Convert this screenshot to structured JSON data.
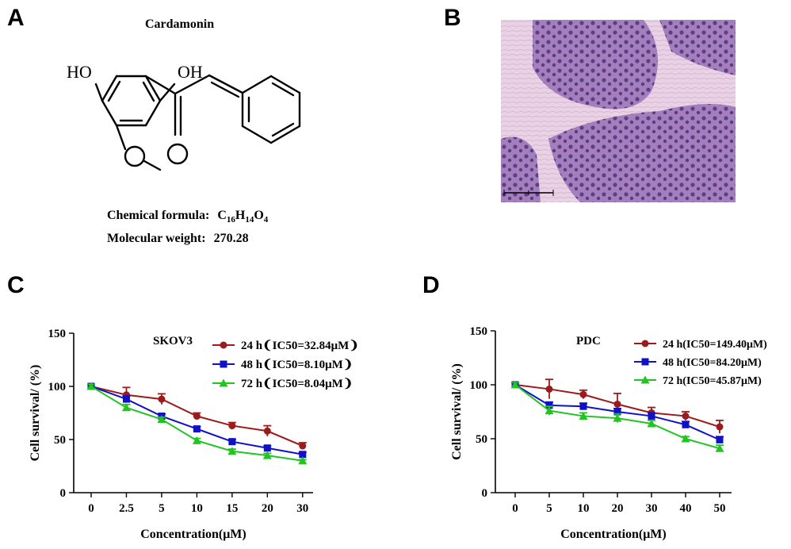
{
  "panels": {
    "a": "A",
    "b": "B",
    "c": "C",
    "d": "D"
  },
  "molecule": {
    "name": "Cardamonin",
    "formula_label": "Chemical formula:",
    "formula_parts": [
      {
        "t": "C",
        "sub": "16"
      },
      {
        "t": "H",
        "sub": "14"
      },
      {
        "t": "O",
        "sub": "4"
      }
    ],
    "weight_label": "Molecular weight:",
    "weight_value": "270.28",
    "atoms": {
      "ho_left": "HO",
      "oh_right": "OH"
    }
  },
  "colors": {
    "series_24h": "#9b1b1b",
    "series_48h": "#1010c8",
    "series_72h": "#22c422",
    "histology_bg": "#b89ac6"
  },
  "chart_data": [
    {
      "type": "line",
      "title": "SKOV3",
      "xlabel": "Concentration(μM)",
      "ylabel": "Cell survival/ (%)",
      "categories": [
        "0",
        "2.5",
        "5",
        "10",
        "15",
        "20",
        "30"
      ],
      "ylim": [
        0,
        150
      ],
      "yticks": [
        0,
        50,
        100,
        150
      ],
      "legend_position": "top-right",
      "series": [
        {
          "name": "24 h❨IC50=32.84μM❩",
          "marker": "circle",
          "color": "#9b1b1b",
          "values": [
            100,
            92,
            88,
            72,
            63,
            58,
            44
          ],
          "errors": [
            2,
            7,
            5,
            3,
            3,
            5,
            3
          ]
        },
        {
          "name": "48 h❨IC50=8.10μM❩",
          "marker": "square",
          "color": "#1010c8",
          "values": [
            100,
            88,
            72,
            60,
            48,
            42,
            36
          ],
          "errors": [
            2,
            3,
            2,
            2,
            2,
            2,
            2
          ]
        },
        {
          "name": "72 h❨IC50=8.04μM❩",
          "marker": "triangle",
          "color": "#22c422",
          "values": [
            100,
            80,
            69,
            49,
            39,
            35,
            30
          ],
          "errors": [
            2,
            3,
            2,
            2,
            2,
            2,
            1
          ]
        }
      ]
    },
    {
      "type": "line",
      "title": "PDC",
      "xlabel": "Concentration(μM)",
      "ylabel": "Cell survival/ (%)",
      "categories": [
        "0",
        "5",
        "10",
        "20",
        "30",
        "40",
        "50"
      ],
      "ylim": [
        0,
        150
      ],
      "yticks": [
        0,
        50,
        100,
        150
      ],
      "legend_position": "top-right",
      "series": [
        {
          "name": "24 h(IC50=149.40μM)",
          "marker": "circle",
          "color": "#9b1b1b",
          "values": [
            100,
            96,
            91,
            82,
            74,
            71,
            61
          ],
          "errors": [
            2,
            9,
            4,
            10,
            5,
            4,
            6
          ]
        },
        {
          "name": "48 h(IC50=84.20μM)",
          "marker": "square",
          "color": "#1010c8",
          "values": [
            100,
            81,
            80,
            75,
            71,
            63,
            49
          ],
          "errors": [
            2,
            3,
            3,
            3,
            3,
            3,
            3
          ]
        },
        {
          "name": "72 h(IC50=45.87μM)",
          "marker": "triangle",
          "color": "#22c422",
          "values": [
            100,
            76,
            71,
            69,
            64,
            50,
            41
          ],
          "errors": [
            2,
            4,
            3,
            4,
            3,
            2,
            3
          ]
        }
      ]
    }
  ]
}
